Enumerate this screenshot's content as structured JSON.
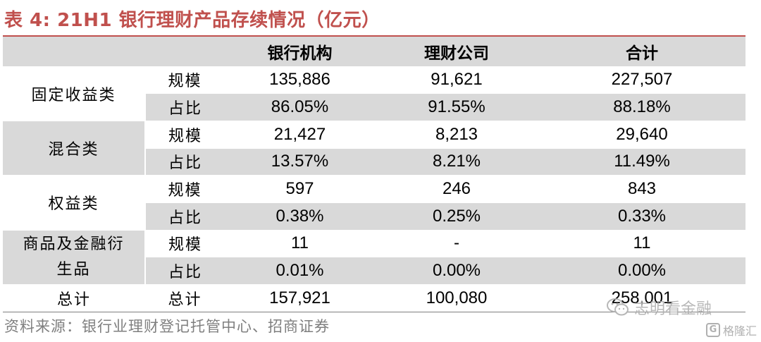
{
  "title": "表 4:  21H1 银行理财产品存续情况（亿元）",
  "table": {
    "headers": [
      "",
      "",
      "银行机构",
      "理财公司",
      "合计"
    ],
    "groups": [
      {
        "category": "固定收益类",
        "rows": [
          {
            "metric": "规模",
            "bank": "135,886",
            "wmc": "91,621",
            "total": "227,507"
          },
          {
            "metric": "占比",
            "bank": "86.05%",
            "wmc": "91.55%",
            "total": "88.18%"
          }
        ]
      },
      {
        "category": "混合类",
        "rows": [
          {
            "metric": "规模",
            "bank": "21,427",
            "wmc": "8,213",
            "total": "29,640"
          },
          {
            "metric": "占比",
            "bank": "13.57%",
            "wmc": "8.21%",
            "total": "11.49%"
          }
        ]
      },
      {
        "category": "权益类",
        "rows": [
          {
            "metric": "规模",
            "bank": "597",
            "wmc": "246",
            "total": "843"
          },
          {
            "metric": "占比",
            "bank": "0.38%",
            "wmc": "0.25%",
            "total": "0.33%"
          }
        ]
      },
      {
        "category_line1": "商品及金融衍",
        "category_line2": "生品",
        "rows": [
          {
            "metric": "规模",
            "bank": "11",
            "wmc": "-",
            "total": "11"
          },
          {
            "metric": "占比",
            "bank": "0.01%",
            "wmc": "0.00%",
            "total": "0.00%"
          }
        ]
      }
    ],
    "total": {
      "category": "总计",
      "metric": "总计",
      "bank": "157,921",
      "wmc": "100,080",
      "total": "258,001"
    }
  },
  "source": "资料来源：银行业理财登记托管中心、招商证券",
  "watermark": {
    "main": "志明看金融",
    "sub": "格隆汇",
    "main_icon": "wechat-icon",
    "sub_icon": "gelonghui-icon"
  },
  "colors": {
    "title": "#c0504d",
    "shade": "#d9d9d9",
    "source": "#7f7f7f"
  }
}
